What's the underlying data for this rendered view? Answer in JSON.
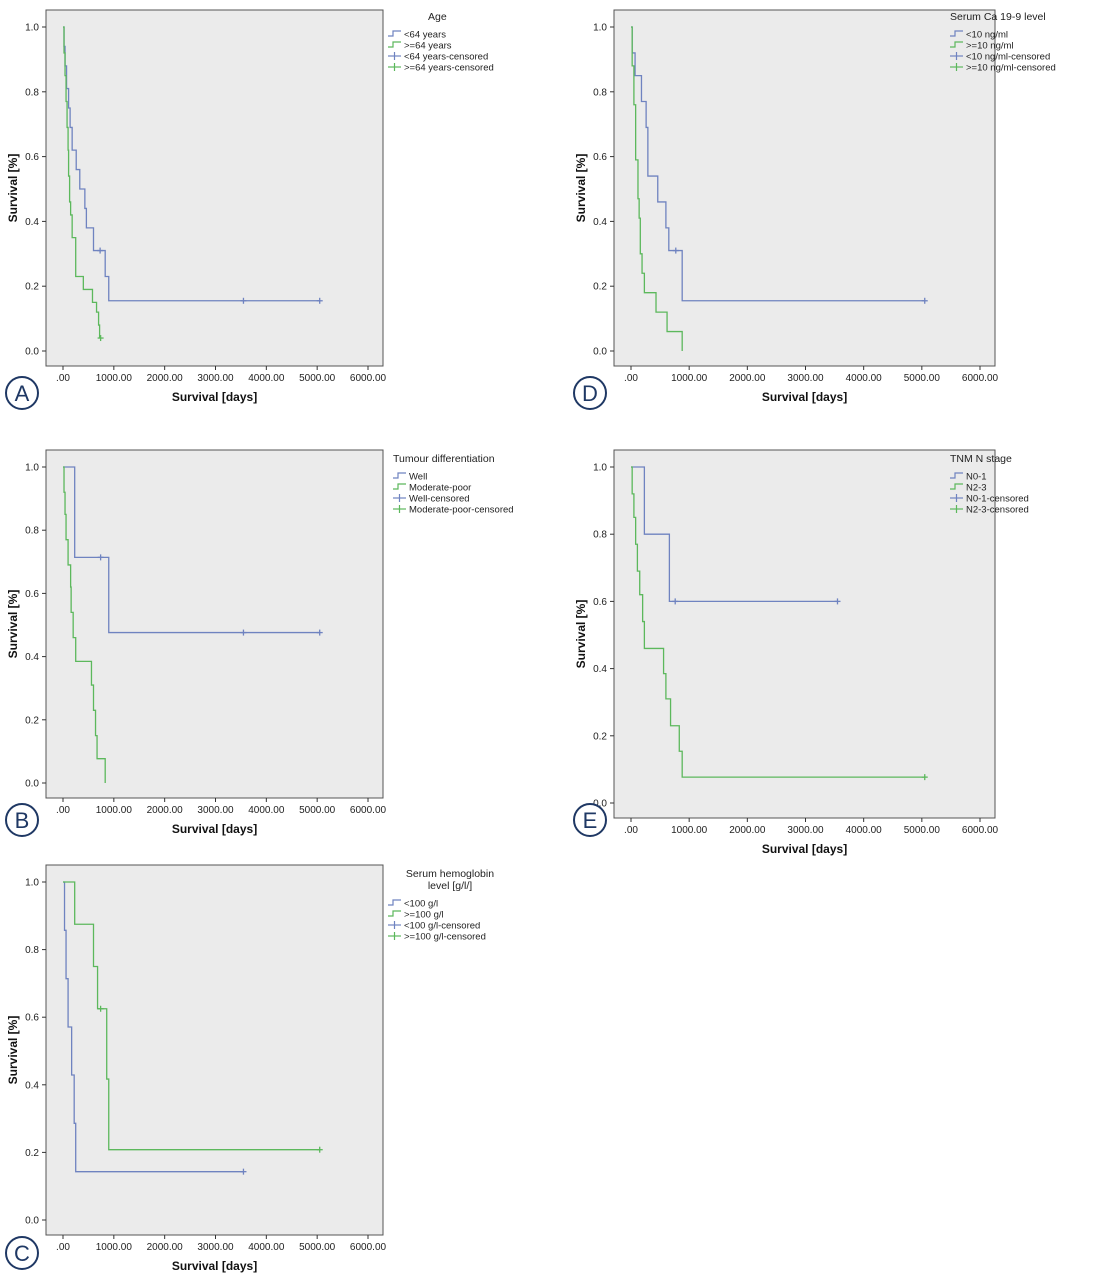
{
  "figure": {
    "common": {
      "xlabel": "Survival [days]",
      "ylabel": "Survival [%]",
      "x_ticks": [
        ".00",
        "1000.00",
        "2000.00",
        "3000.00",
        "4000.00",
        "5000.00",
        "6000.00"
      ],
      "y_ticks": [
        "0.0",
        "0.2",
        "0.4",
        "0.6",
        "0.8",
        "1.0"
      ],
      "colors": {
        "series1": "#6f83c0",
        "series2": "#5cb85c",
        "plot_bg": "#ebebeb",
        "frame": "#555555",
        "panel_letter": "#1f3864"
      }
    }
  },
  "chart_data": [
    {
      "panel": "A",
      "type": "line",
      "subtype": "kaplan-meier",
      "legend_title": "Age",
      "legend": [
        "<64 years",
        ">=64 years",
        "<64 years-censored",
        ">=64 years-censored"
      ],
      "xlabel": "Survival [days]",
      "ylabel": "Survival [%]",
      "xlim": [
        0,
        6000
      ],
      "ylim": [
        0,
        1
      ],
      "series": [
        {
          "name": "<64 years",
          "color": "#6f83c0",
          "steps": [
            [
              0,
              1.0
            ],
            [
              20,
              0.94
            ],
            [
              40,
              0.88
            ],
            [
              70,
              0.81
            ],
            [
              110,
              0.75
            ],
            [
              140,
              0.69
            ],
            [
              180,
              0.62
            ],
            [
              260,
              0.56
            ],
            [
              330,
              0.5
            ],
            [
              430,
              0.44
            ],
            [
              460,
              0.38
            ],
            [
              600,
              0.31
            ],
            [
              830,
              0.23
            ],
            [
              900,
              0.155
            ],
            [
              5050,
              0.155
            ]
          ],
          "censored": [
            [
              730,
              0.31
            ],
            [
              3550,
              0.155
            ],
            [
              5050,
              0.155
            ]
          ]
        },
        {
          "name": ">=64 years",
          "color": "#5cb85c",
          "steps": [
            [
              0,
              1.0
            ],
            [
              20,
              0.92
            ],
            [
              40,
              0.85
            ],
            [
              60,
              0.77
            ],
            [
              80,
              0.69
            ],
            [
              100,
              0.62
            ],
            [
              110,
              0.54
            ],
            [
              130,
              0.46
            ],
            [
              150,
              0.42
            ],
            [
              180,
              0.35
            ],
            [
              250,
              0.23
            ],
            [
              400,
              0.19
            ],
            [
              580,
              0.15
            ],
            [
              660,
              0.12
            ],
            [
              700,
              0.08
            ],
            [
              720,
              0.04
            ]
          ],
          "censored": [
            [
              740,
              0.04
            ]
          ]
        }
      ]
    },
    {
      "panel": "D",
      "type": "line",
      "subtype": "kaplan-meier",
      "legend_title": "Serum Ca 19-9 level",
      "legend": [
        "<10 ng/ml",
        ">=10 ng/ml",
        "<10 ng/ml-censored",
        ">=10 ng/ml-censored"
      ],
      "xlabel": "Survival [days]",
      "ylabel": "Survival [%]",
      "xlim": [
        0,
        6000
      ],
      "ylim": [
        0,
        1
      ],
      "series": [
        {
          "name": "<10 ng/ml",
          "color": "#6f83c0",
          "steps": [
            [
              0,
              1.0
            ],
            [
              20,
              0.92
            ],
            [
              70,
              0.85
            ],
            [
              180,
              0.77
            ],
            [
              260,
              0.69
            ],
            [
              290,
              0.54
            ],
            [
              460,
              0.46
            ],
            [
              600,
              0.38
            ],
            [
              650,
              0.31
            ],
            [
              880,
              0.155
            ],
            [
              5050,
              0.155
            ]
          ],
          "censored": [
            [
              770,
              0.31
            ],
            [
              5050,
              0.155
            ]
          ]
        },
        {
          "name": ">=10 ng/ml",
          "color": "#5cb85c",
          "steps": [
            [
              0,
              1.0
            ],
            [
              20,
              0.88
            ],
            [
              50,
              0.76
            ],
            [
              80,
              0.59
            ],
            [
              120,
              0.47
            ],
            [
              140,
              0.41
            ],
            [
              160,
              0.3
            ],
            [
              190,
              0.24
            ],
            [
              230,
              0.18
            ],
            [
              430,
              0.12
            ],
            [
              620,
              0.06
            ],
            [
              880,
              0.0
            ]
          ],
          "censored": []
        }
      ]
    },
    {
      "panel": "B",
      "type": "line",
      "subtype": "kaplan-meier",
      "legend_title": "Tumour differentiation",
      "legend": [
        "Well",
        "Moderate-poor",
        "Well-censored",
        "Moderate-poor-censored"
      ],
      "xlabel": "Survival [days]",
      "ylabel": "Survival [%]",
      "xlim": [
        0,
        6000
      ],
      "ylim": [
        0,
        1
      ],
      "series": [
        {
          "name": "Well",
          "color": "#6f83c0",
          "steps": [
            [
              0,
              1.0
            ],
            [
              230,
              0.714
            ],
            [
              900,
              0.476
            ],
            [
              5050,
              0.476
            ]
          ],
          "censored": [
            [
              740,
              0.714
            ],
            [
              3550,
              0.476
            ],
            [
              5050,
              0.476
            ]
          ]
        },
        {
          "name": "Moderate-poor",
          "color": "#5cb85c",
          "steps": [
            [
              0,
              1.0
            ],
            [
              20,
              0.92
            ],
            [
              40,
              0.85
            ],
            [
              60,
              0.77
            ],
            [
              100,
              0.69
            ],
            [
              150,
              0.62
            ],
            [
              160,
              0.54
            ],
            [
              200,
              0.46
            ],
            [
              250,
              0.385
            ],
            [
              560,
              0.31
            ],
            [
              600,
              0.23
            ],
            [
              640,
              0.15
            ],
            [
              670,
              0.077
            ],
            [
              830,
              0.0
            ]
          ],
          "censored": []
        }
      ]
    },
    {
      "panel": "E",
      "type": "line",
      "subtype": "kaplan-meier",
      "legend_title": "TNM N stage",
      "legend": [
        "N0-1",
        "N2-3",
        "N0-1-censored",
        "N2-3-censored"
      ],
      "xlabel": "Survival [days]",
      "ylabel": "Survival [%]",
      "xlim": [
        0,
        6000
      ],
      "ylim": [
        0,
        1
      ],
      "series": [
        {
          "name": "N0-1",
          "color": "#6f83c0",
          "steps": [
            [
              0,
              1.0
            ],
            [
              230,
              0.8
            ],
            [
              660,
              0.6
            ],
            [
              3550,
              0.6
            ]
          ],
          "censored": [
            [
              760,
              0.6
            ],
            [
              3550,
              0.6
            ]
          ]
        },
        {
          "name": "N2-3",
          "color": "#5cb85c",
          "steps": [
            [
              0,
              1.0
            ],
            [
              20,
              0.92
            ],
            [
              50,
              0.85
            ],
            [
              80,
              0.77
            ],
            [
              110,
              0.69
            ],
            [
              150,
              0.62
            ],
            [
              200,
              0.54
            ],
            [
              230,
              0.46
            ],
            [
              560,
              0.385
            ],
            [
              600,
              0.31
            ],
            [
              680,
              0.23
            ],
            [
              830,
              0.154
            ],
            [
              880,
              0.077
            ],
            [
              5050,
              0.077
            ]
          ],
          "censored": [
            [
              5050,
              0.077
            ]
          ]
        }
      ]
    },
    {
      "panel": "C",
      "type": "line",
      "subtype": "kaplan-meier",
      "legend_title": "Serum hemoglobin level [g/l/]",
      "legend": [
        "<100 g/l",
        ">=100 g/l",
        "<100 g/l-censored",
        ">=100 g/l-censored"
      ],
      "xlabel": "Survival [days]",
      "ylabel": "Survival [%]",
      "xlim": [
        0,
        6000
      ],
      "ylim": [
        0,
        1
      ],
      "series": [
        {
          "name": "<100 g/l",
          "color": "#6f83c0",
          "steps": [
            [
              0,
              1.0
            ],
            [
              30,
              0.857
            ],
            [
              60,
              0.714
            ],
            [
              100,
              0.571
            ],
            [
              170,
              0.429
            ],
            [
              220,
              0.286
            ],
            [
              250,
              0.143
            ],
            [
              3550,
              0.143
            ]
          ],
          "censored": [
            [
              3550,
              0.143
            ]
          ]
        },
        {
          "name": ">=100 g/l",
          "color": "#5cb85c",
          "steps": [
            [
              0,
              1.0
            ],
            [
              230,
              0.875
            ],
            [
              600,
              0.75
            ],
            [
              680,
              0.625
            ],
            [
              860,
              0.417
            ],
            [
              900,
              0.208
            ],
            [
              5050,
              0.208
            ]
          ],
          "censored": [
            [
              740,
              0.625
            ],
            [
              5050,
              0.208
            ]
          ]
        }
      ]
    }
  ]
}
